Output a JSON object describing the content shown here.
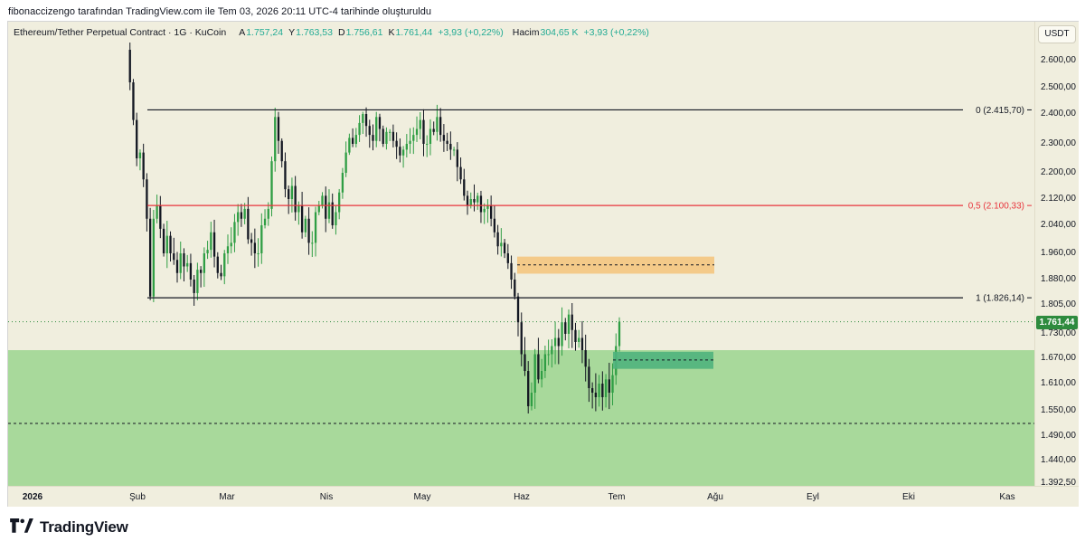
{
  "caption": "fibonaccizengo tarafından TradingView.com ile Tem 03, 2026 20:11 UTC-4 tarihinde oluşturuldu",
  "legend": {
    "symbol": "Ethereum/Tether Perpetual Contract · 1G · KuCoin",
    "open_label": "A",
    "open": "1.757,24",
    "high_label": "Y",
    "high": "1.763,53",
    "low_label": "D",
    "low": "1.756,61",
    "close_label": "K",
    "close": "1.761,44",
    "change": "+3,93 (+0,22%)",
    "volume_label": "Hacim",
    "volume": "304,65 K",
    "volume_change": "+3,93 (+0,22%)"
  },
  "currency": "USDT",
  "price_axis": {
    "ticks": [
      {
        "label": "2.600,00",
        "v": 2600
      },
      {
        "label": "2.500,00",
        "v": 2500
      },
      {
        "label": "2.400,00",
        "v": 2400
      },
      {
        "label": "2.300,00",
        "v": 2300
      },
      {
        "label": "2.200,00",
        "v": 2200
      },
      {
        "label": "2.120,00",
        "v": 2120
      },
      {
        "label": "2.040,00",
        "v": 2040
      },
      {
        "label": "1.960,00",
        "v": 1960
      },
      {
        "label": "1.880,00",
        "v": 1880
      },
      {
        "label": "1.805,00",
        "v": 1805
      },
      {
        "label": "1.730,00",
        "v": 1730
      },
      {
        "label": "1.670,00",
        "v": 1670
      },
      {
        "label": "1.610,00",
        "v": 1610
      },
      {
        "label": "1.550,00",
        "v": 1550
      },
      {
        "label": "1.490,00",
        "v": 1490
      },
      {
        "label": "1.440,00",
        "v": 1440
      },
      {
        "label": "1.392,50",
        "v": 1392.5
      }
    ],
    "last_price": "1.761,44",
    "last_price_value": 1761.44
  },
  "time_axis": [
    {
      "label": "2026",
      "year": true
    },
    {
      "label": "Şub",
      "year": false
    },
    {
      "label": "Mar",
      "year": false
    },
    {
      "label": "Nis",
      "year": false
    },
    {
      "label": "May",
      "year": false
    },
    {
      "label": "Haz",
      "year": false
    },
    {
      "label": "Tem",
      "year": false
    },
    {
      "label": "Ağu",
      "year": false
    },
    {
      "label": "Eyl",
      "year": false
    },
    {
      "label": "Eki",
      "year": false
    },
    {
      "label": "Kas",
      "year": false
    }
  ],
  "fib_levels": [
    {
      "label": "0 (2.415,70)",
      "value": 2415.7,
      "color": "#131722"
    },
    {
      "label": "0,5 (2.100,33)",
      "value": 2100.33,
      "color": "#e8343c"
    },
    {
      "label": "1 (1.826,14)",
      "value": 1826.14,
      "color": "#131722"
    }
  ],
  "zones": {
    "demand_zone_high": 1690,
    "demand_zone_low": 1392.5,
    "demand_zone_mid": 1520,
    "supply_box_high": 1950,
    "supply_box_low": 1898,
    "supply_box_mid": 1925,
    "green_box_high": 1686,
    "green_box_low": 1645,
    "green_box_mid": 1666
  },
  "colors": {
    "up": "#2f9e44",
    "down": "#131722",
    "background": "#f0eede",
    "demand": "#a8d99b",
    "supply": "#f5c37a",
    "green_box": "#4fb37d",
    "brand": "#131722"
  },
  "chart_data": {
    "type": "candlestick",
    "timeframe": "1G",
    "closes_approx": [
      2640,
      2520,
      2380,
      2250,
      2270,
      2180,
      2060,
      1830,
      2060,
      2100,
      2030,
      1960,
      2010,
      1960,
      1940,
      1900,
      1960,
      1920,
      1930,
      1880,
      1840,
      1910,
      1900,
      1960,
      1970,
      2020,
      1950,
      1900,
      1890,
      1960,
      1980,
      1990,
      2050,
      2080,
      2060,
      2090,
      2000,
      1990,
      1960,
      1960,
      2040,
      2060,
      2090,
      2240,
      2390,
      2310,
      2240,
      2150,
      2120,
      2160,
      2080,
      2100,
      2020,
      2060,
      1990,
      1990,
      2080,
      2100,
      2130,
      2060,
      2110,
      2040,
      2080,
      2140,
      2200,
      2270,
      2320,
      2300,
      2330,
      2370,
      2400,
      2360,
      2330,
      2310,
      2390,
      2350,
      2300,
      2340,
      2340,
      2310,
      2290,
      2260,
      2280,
      2300,
      2310,
      2330,
      2350,
      2380,
      2300,
      2300,
      2350,
      2340,
      2390,
      2330,
      2310,
      2300,
      2280,
      2280,
      2220,
      2180,
      2130,
      2100,
      2120,
      2110,
      2130,
      2080,
      2090,
      2100,
      2060,
      2020,
      1980,
      1990,
      1960,
      1930,
      1880,
      1830,
      1760,
      1680,
      1640,
      1560,
      1590,
      1680,
      1620,
      1640,
      1680,
      1680,
      1700,
      1720,
      1700,
      1760,
      1730,
      1780,
      1740,
      1710,
      1720,
      1690,
      1650,
      1600,
      1590,
      1580,
      1610,
      1580,
      1620,
      1590,
      1630,
      1700,
      1761.44
    ]
  }
}
